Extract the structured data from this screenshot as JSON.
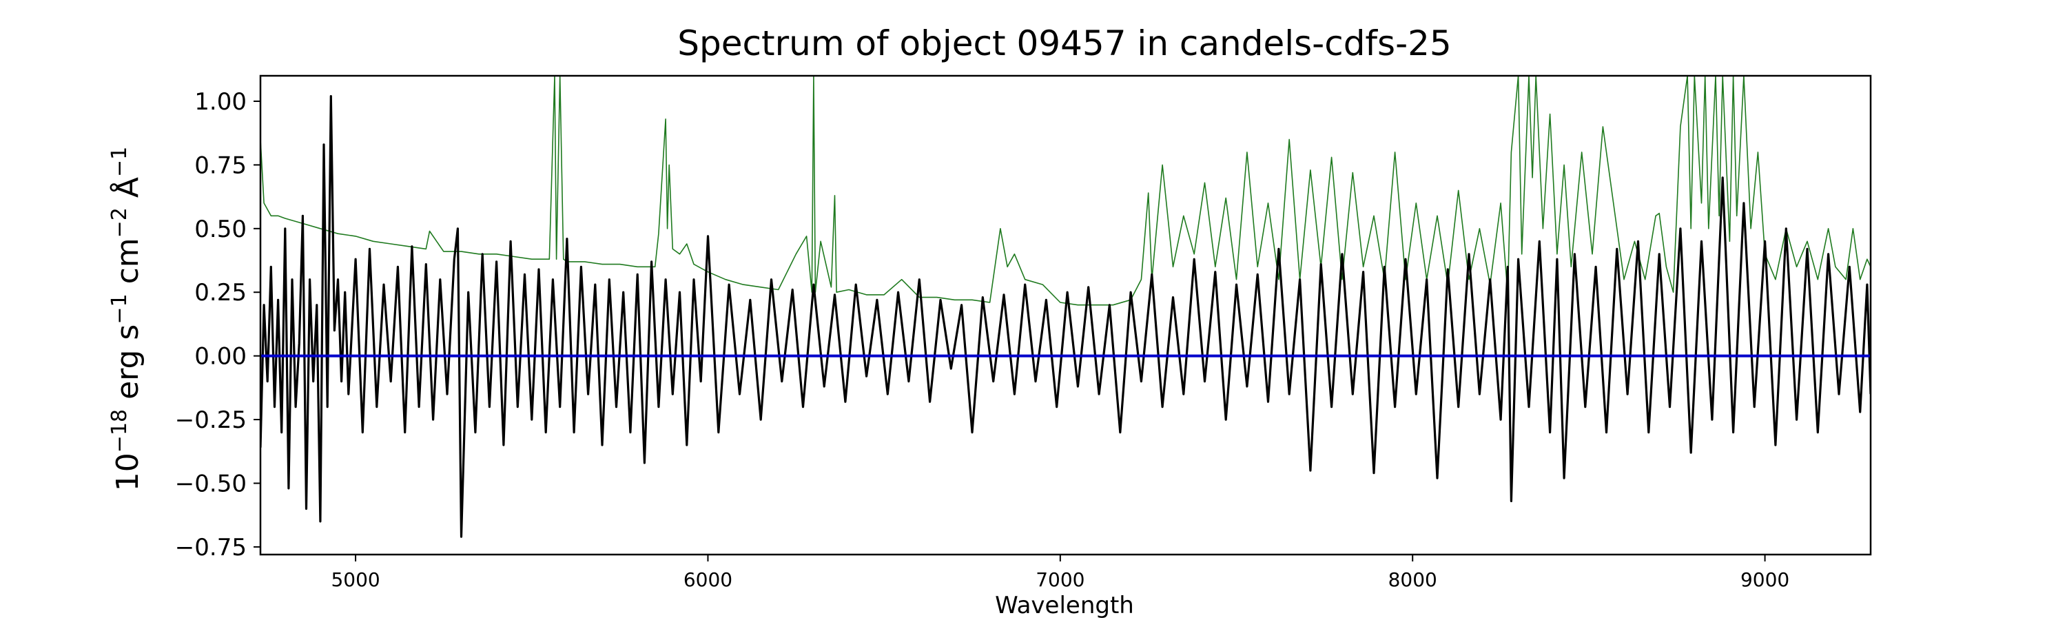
{
  "chart_data": {
    "type": "line",
    "title": "Spectrum of object 09457 in candels-cdfs-25",
    "xlabel": "Wavelength",
    "ylabel_base": "10",
    "ylabel_exp": "−18",
    "ylabel_units": [
      {
        "text": " erg s",
        "sup": "−1"
      },
      {
        "text": " cm",
        "sup": "−2"
      },
      {
        "text": " Å",
        "sup": "−1"
      }
    ],
    "xlim": [
      4730,
      9300
    ],
    "ylim": [
      -0.78,
      1.1
    ],
    "x_ticks": [
      5000,
      6000,
      7000,
      8000,
      9000
    ],
    "x_tick_labels": [
      "5000",
      "6000",
      "7000",
      "8000",
      "9000"
    ],
    "y_ticks": [
      -0.75,
      -0.5,
      -0.25,
      0.0,
      0.25,
      0.5,
      0.75,
      1.0
    ],
    "y_tick_labels": [
      "−0.75",
      "−0.50",
      "−0.25",
      "0.00",
      "0.25",
      "0.50",
      "0.75",
      "1.00"
    ],
    "grid": false,
    "series": [
      {
        "color": "#1f7a1f",
        "x": [
          4730,
          4740,
          4760,
          4780,
          4800,
          4850,
          4900,
          4950,
          5000,
          5050,
          5100,
          5150,
          5200,
          5210,
          5250,
          5300,
          5350,
          5400,
          5450,
          5500,
          5550,
          5565,
          5570,
          5580,
          5590,
          5600,
          5650,
          5700,
          5750,
          5800,
          5850,
          5860,
          5880,
          5885,
          5890,
          5900,
          5920,
          5940,
          5960,
          6000,
          6050,
          6100,
          6150,
          6200,
          6250,
          6280,
          6295,
          6300,
          6305,
          6320,
          6350,
          6360,
          6365,
          6400,
          6450,
          6500,
          6550,
          6600,
          6650,
          6700,
          6750,
          6800,
          6830,
          6850,
          6870,
          6900,
          6950,
          7000,
          7050,
          7100,
          7150,
          7200,
          7230,
          7250,
          7260,
          7290,
          7320,
          7350,
          7380,
          7410,
          7440,
          7470,
          7500,
          7530,
          7560,
          7590,
          7620,
          7650,
          7680,
          7710,
          7740,
          7770,
          7800,
          7830,
          7860,
          7890,
          7920,
          7950,
          7980,
          8010,
          8040,
          8070,
          8100,
          8130,
          8160,
          8190,
          8220,
          8250,
          8270,
          8280,
          8300,
          8310,
          8330,
          8340,
          8350,
          8370,
          8390,
          8410,
          8430,
          8450,
          8480,
          8510,
          8540,
          8570,
          8600,
          8630,
          8660,
          8690,
          8700,
          8720,
          8740,
          8760,
          8780,
          8790,
          8800,
          8820,
          8830,
          8840,
          8860,
          8870,
          8880,
          8900,
          8910,
          8920,
          8940,
          8960,
          8980,
          9000,
          9030,
          9060,
          9090,
          9120,
          9150,
          9180,
          9200,
          9230,
          9250,
          9270,
          9290,
          9300
        ],
        "y": [
          0.85,
          0.6,
          0.55,
          0.55,
          0.54,
          0.52,
          0.5,
          0.48,
          0.47,
          0.45,
          0.44,
          0.43,
          0.42,
          0.49,
          0.41,
          0.41,
          0.4,
          0.4,
          0.39,
          0.38,
          0.38,
          1.1,
          0.38,
          1.1,
          0.38,
          0.37,
          0.37,
          0.36,
          0.36,
          0.35,
          0.35,
          0.48,
          0.93,
          0.5,
          0.75,
          0.42,
          0.4,
          0.44,
          0.36,
          0.33,
          0.3,
          0.28,
          0.27,
          0.26,
          0.4,
          0.47,
          0.25,
          1.1,
          0.25,
          0.45,
          0.27,
          0.63,
          0.25,
          0.26,
          0.24,
          0.24,
          0.3,
          0.23,
          0.23,
          0.22,
          0.22,
          0.21,
          0.5,
          0.35,
          0.4,
          0.3,
          0.28,
          0.21,
          0.2,
          0.2,
          0.2,
          0.22,
          0.3,
          0.64,
          0.3,
          0.75,
          0.35,
          0.55,
          0.4,
          0.68,
          0.35,
          0.62,
          0.3,
          0.8,
          0.35,
          0.6,
          0.3,
          0.85,
          0.3,
          0.73,
          0.35,
          0.78,
          0.3,
          0.72,
          0.35,
          0.55,
          0.3,
          0.8,
          0.3,
          0.6,
          0.3,
          0.55,
          0.28,
          0.65,
          0.3,
          0.5,
          0.28,
          0.6,
          0.24,
          0.8,
          1.1,
          0.4,
          1.1,
          0.7,
          1.1,
          0.5,
          0.95,
          0.4,
          0.75,
          0.35,
          0.8,
          0.4,
          0.9,
          0.6,
          0.3,
          0.45,
          0.3,
          0.55,
          0.56,
          0.35,
          0.25,
          0.9,
          1.1,
          0.5,
          1.1,
          0.6,
          1.1,
          0.5,
          1.1,
          0.55,
          1.1,
          0.45,
          1.1,
          0.55,
          1.1,
          0.5,
          0.8,
          0.4,
          0.3,
          0.5,
          0.35,
          0.45,
          0.3,
          0.5,
          0.35,
          0.3,
          0.5,
          0.3,
          0.38,
          0.35
        ]
      },
      {
        "color": "#000000",
        "x": [
          4730,
          4740,
          4750,
          4760,
          4770,
          4780,
          4790,
          4800,
          4810,
          4820,
          4830,
          4840,
          4850,
          4860,
          4870,
          4880,
          4890,
          4900,
          4910,
          4920,
          4930,
          4940,
          4950,
          4960,
          4970,
          4980,
          5000,
          5020,
          5040,
          5060,
          5080,
          5100,
          5120,
          5140,
          5160,
          5180,
          5200,
          5220,
          5240,
          5260,
          5280,
          5290,
          5300,
          5320,
          5340,
          5360,
          5380,
          5400,
          5420,
          5440,
          5460,
          5480,
          5500,
          5520,
          5540,
          5560,
          5580,
          5600,
          5620,
          5640,
          5660,
          5680,
          5700,
          5720,
          5740,
          5760,
          5780,
          5800,
          5820,
          5840,
          5860,
          5880,
          5900,
          5920,
          5940,
          5960,
          5980,
          6000,
          6030,
          6060,
          6090,
          6120,
          6150,
          6180,
          6210,
          6240,
          6270,
          6300,
          6330,
          6360,
          6390,
          6420,
          6450,
          6480,
          6510,
          6540,
          6570,
          6600,
          6630,
          6660,
          6690,
          6720,
          6750,
          6780,
          6810,
          6840,
          6870,
          6900,
          6930,
          6960,
          6990,
          7020,
          7050,
          7080,
          7110,
          7140,
          7170,
          7200,
          7230,
          7260,
          7290,
          7320,
          7350,
          7380,
          7410,
          7440,
          7470,
          7500,
          7530,
          7560,
          7590,
          7620,
          7650,
          7680,
          7710,
          7740,
          7770,
          7800,
          7830,
          7860,
          7890,
          7920,
          7950,
          7980,
          8010,
          8040,
          8070,
          8100,
          8130,
          8160,
          8190,
          8220,
          8250,
          8270,
          8280,
          8300,
          8330,
          8360,
          8390,
          8410,
          8430,
          8460,
          8490,
          8520,
          8550,
          8580,
          8610,
          8640,
          8670,
          8700,
          8730,
          8760,
          8790,
          8820,
          8850,
          8880,
          8910,
          8940,
          8970,
          9000,
          9030,
          9060,
          9090,
          9120,
          9150,
          9180,
          9210,
          9240,
          9270,
          9290,
          9300
        ],
        "y": [
          -0.36,
          0.2,
          -0.1,
          0.35,
          -0.2,
          0.22,
          -0.3,
          0.5,
          -0.52,
          0.3,
          -0.2,
          0.05,
          0.55,
          -0.6,
          0.3,
          -0.1,
          0.2,
          -0.65,
          0.83,
          -0.2,
          1.02,
          0.1,
          0.3,
          -0.1,
          0.25,
          -0.15,
          0.38,
          -0.3,
          0.42,
          -0.2,
          0.28,
          -0.1,
          0.35,
          -0.3,
          0.43,
          -0.2,
          0.36,
          -0.25,
          0.3,
          -0.15,
          0.38,
          0.5,
          -0.71,
          0.25,
          -0.3,
          0.4,
          -0.2,
          0.37,
          -0.35,
          0.45,
          -0.2,
          0.32,
          -0.25,
          0.34,
          -0.3,
          0.3,
          -0.2,
          0.46,
          -0.3,
          0.35,
          -0.15,
          0.28,
          -0.35,
          0.3,
          -0.2,
          0.25,
          -0.3,
          0.32,
          -0.42,
          0.37,
          -0.2,
          0.3,
          -0.15,
          0.25,
          -0.35,
          0.3,
          -0.1,
          0.47,
          -0.3,
          0.28,
          -0.15,
          0.22,
          -0.25,
          0.3,
          -0.1,
          0.26,
          -0.2,
          0.28,
          -0.12,
          0.24,
          -0.18,
          0.28,
          -0.08,
          0.22,
          -0.15,
          0.25,
          -0.1,
          0.3,
          -0.18,
          0.22,
          -0.05,
          0.2,
          -0.3,
          0.23,
          -0.1,
          0.24,
          -0.15,
          0.28,
          -0.1,
          0.22,
          -0.2,
          0.25,
          -0.12,
          0.27,
          -0.15,
          0.2,
          -0.3,
          0.25,
          -0.1,
          0.32,
          -0.2,
          0.23,
          -0.15,
          0.38,
          -0.1,
          0.33,
          -0.25,
          0.28,
          -0.12,
          0.32,
          -0.18,
          0.42,
          -0.15,
          0.3,
          -0.45,
          0.36,
          -0.2,
          0.4,
          -0.15,
          0.33,
          -0.46,
          0.35,
          -0.2,
          0.38,
          -0.15,
          0.3,
          -0.48,
          0.34,
          -0.2,
          0.4,
          -0.15,
          0.3,
          -0.25,
          0.35,
          -0.57,
          0.38,
          -0.2,
          0.45,
          -0.3,
          0.38,
          -0.48,
          0.4,
          -0.2,
          0.35,
          -0.3,
          0.42,
          -0.15,
          0.45,
          -0.3,
          0.4,
          -0.2,
          0.5,
          -0.38,
          0.45,
          -0.25,
          0.7,
          -0.3,
          0.6,
          -0.2,
          0.45,
          -0.35,
          0.5,
          -0.25,
          0.42,
          -0.3,
          0.4,
          -0.15,
          0.35,
          -0.22,
          0.28,
          -0.15
        ]
      },
      {
        "color": "#0000cc",
        "x": [
          4730,
          9300
        ],
        "y": [
          0.0,
          0.0
        ]
      }
    ]
  }
}
